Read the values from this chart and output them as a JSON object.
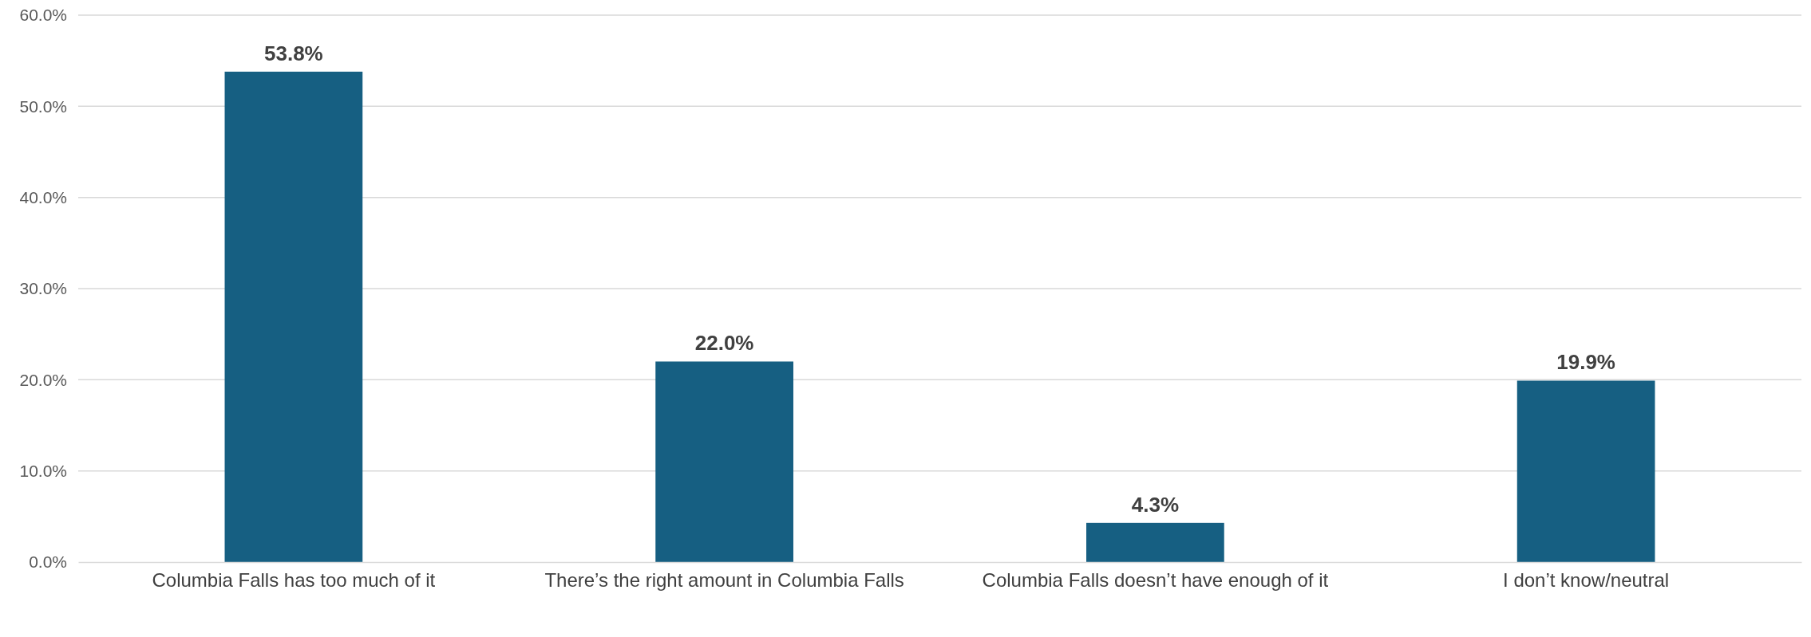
{
  "chart_data": {
    "type": "bar",
    "categories": [
      "Columbia Falls has too much of it",
      "There’s the right amount in Columbia Falls",
      "Columbia Falls doesn’t have enough of it",
      "I don’t know/neutral"
    ],
    "values": [
      53.8,
      22.0,
      4.3,
      19.9
    ],
    "value_labels": [
      "53.8%",
      "22.0%",
      "4.3%",
      "19.9%"
    ],
    "color": "#165f82",
    "ylim": [
      0,
      60
    ],
    "yticks": [
      {
        "value": 0,
        "label": "0.0%"
      },
      {
        "value": 10,
        "label": "10.0%"
      },
      {
        "value": 20,
        "label": "20.0%"
      },
      {
        "value": 30,
        "label": "30.0%"
      },
      {
        "value": 40,
        "label": "40.0%"
      },
      {
        "value": 50,
        "label": "50.0%"
      },
      {
        "value": 60,
        "label": "60.0%"
      }
    ],
    "grid": "y"
  }
}
